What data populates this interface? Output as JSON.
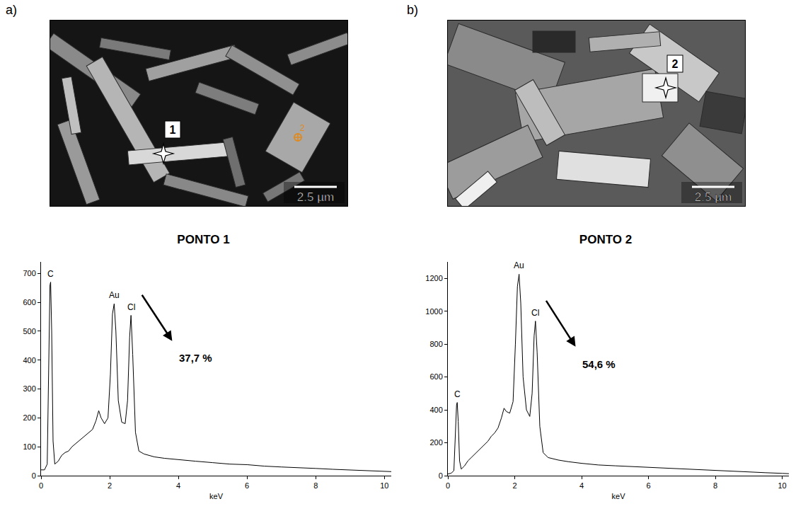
{
  "panels": [
    {
      "label": "a)",
      "scale_bar": "2.5 µm",
      "point": "1",
      "marker_tag": "2"
    },
    {
      "label": "b)",
      "scale_bar": "2.5 µm",
      "point": "2"
    }
  ],
  "chart_data": [
    {
      "type": "line",
      "title": "PONTO 1",
      "x_label": "keV",
      "color": "#000000",
      "grid": false,
      "x": [
        0,
        0.1,
        0.18,
        0.22,
        0.26,
        0.28,
        0.31,
        0.35,
        0.4,
        0.5,
        0.6,
        0.7,
        0.8,
        0.9,
        1.0,
        1.1,
        1.2,
        1.3,
        1.4,
        1.5,
        1.6,
        1.68,
        1.75,
        1.85,
        1.95,
        2.02,
        2.08,
        2.13,
        2.18,
        2.25,
        2.35,
        2.45,
        2.52,
        2.58,
        2.62,
        2.67,
        2.75,
        2.85,
        3.0,
        3.3,
        3.6,
        4.0,
        4.5,
        5,
        5.5,
        6,
        6.5,
        7,
        7.5,
        8,
        8.5,
        9,
        9.5,
        10,
        10.2
      ],
      "values": [
        20,
        20,
        40,
        300,
        660,
        670,
        500,
        120,
        40,
        50,
        70,
        80,
        85,
        100,
        110,
        120,
        130,
        140,
        150,
        160,
        190,
        225,
        200,
        180,
        200,
        350,
        560,
        595,
        500,
        260,
        185,
        180,
        260,
        480,
        555,
        420,
        150,
        85,
        75,
        65,
        60,
        55,
        50,
        45,
        40,
        38,
        33,
        30,
        28,
        25,
        22,
        20,
        18,
        15,
        14
      ],
      "xlim": [
        0,
        10.2
      ],
      "xticks": [
        0,
        2,
        4,
        6,
        8,
        10
      ],
      "ylim": [
        0,
        740
      ],
      "yticks": [
        0,
        100,
        200,
        300,
        400,
        500,
        600,
        700
      ],
      "annotations": [
        {
          "text": "C",
          "x": 0.28
        },
        {
          "text": "Au",
          "x": 2.13
        },
        {
          "text": "Cl",
          "x": 2.62
        }
      ],
      "callout": "37,7 %"
    },
    {
      "type": "line",
      "title": "PONTO 2",
      "x_label": "keV",
      "color": "#000000",
      "grid": false,
      "x": [
        0,
        0.1,
        0.18,
        0.22,
        0.26,
        0.28,
        0.31,
        0.35,
        0.4,
        0.5,
        0.6,
        0.7,
        0.8,
        0.9,
        1.0,
        1.1,
        1.2,
        1.3,
        1.4,
        1.5,
        1.6,
        1.68,
        1.75,
        1.85,
        1.95,
        2.02,
        2.08,
        2.13,
        2.18,
        2.25,
        2.35,
        2.45,
        2.52,
        2.58,
        2.62,
        2.67,
        2.75,
        2.85,
        3.0,
        3.3,
        3.6,
        4.0,
        4.5,
        5,
        5.5,
        6,
        6.5,
        7,
        7.5,
        8,
        8.5,
        9,
        9.5,
        10,
        10.2
      ],
      "values": [
        10,
        15,
        30,
        200,
        430,
        445,
        330,
        90,
        40,
        60,
        90,
        110,
        130,
        150,
        170,
        190,
        210,
        240,
        260,
        290,
        350,
        410,
        390,
        380,
        450,
        800,
        1150,
        1225,
        1050,
        600,
        400,
        360,
        500,
        850,
        940,
        750,
        300,
        140,
        110,
        95,
        85,
        75,
        65,
        60,
        55,
        50,
        45,
        40,
        36,
        32,
        28,
        22,
        18,
        14,
        12
      ],
      "xlim": [
        0,
        10.2
      ],
      "xticks": [
        0,
        2,
        4,
        6,
        8,
        10
      ],
      "ylim": [
        0,
        1300
      ],
      "yticks": [
        0,
        200,
        400,
        600,
        800,
        1000,
        1200
      ],
      "annotations": [
        {
          "text": "C",
          "x": 0.28
        },
        {
          "text": "Au",
          "x": 2.13
        },
        {
          "text": "Cl",
          "x": 2.62
        }
      ],
      "callout": "54,6 %"
    }
  ]
}
